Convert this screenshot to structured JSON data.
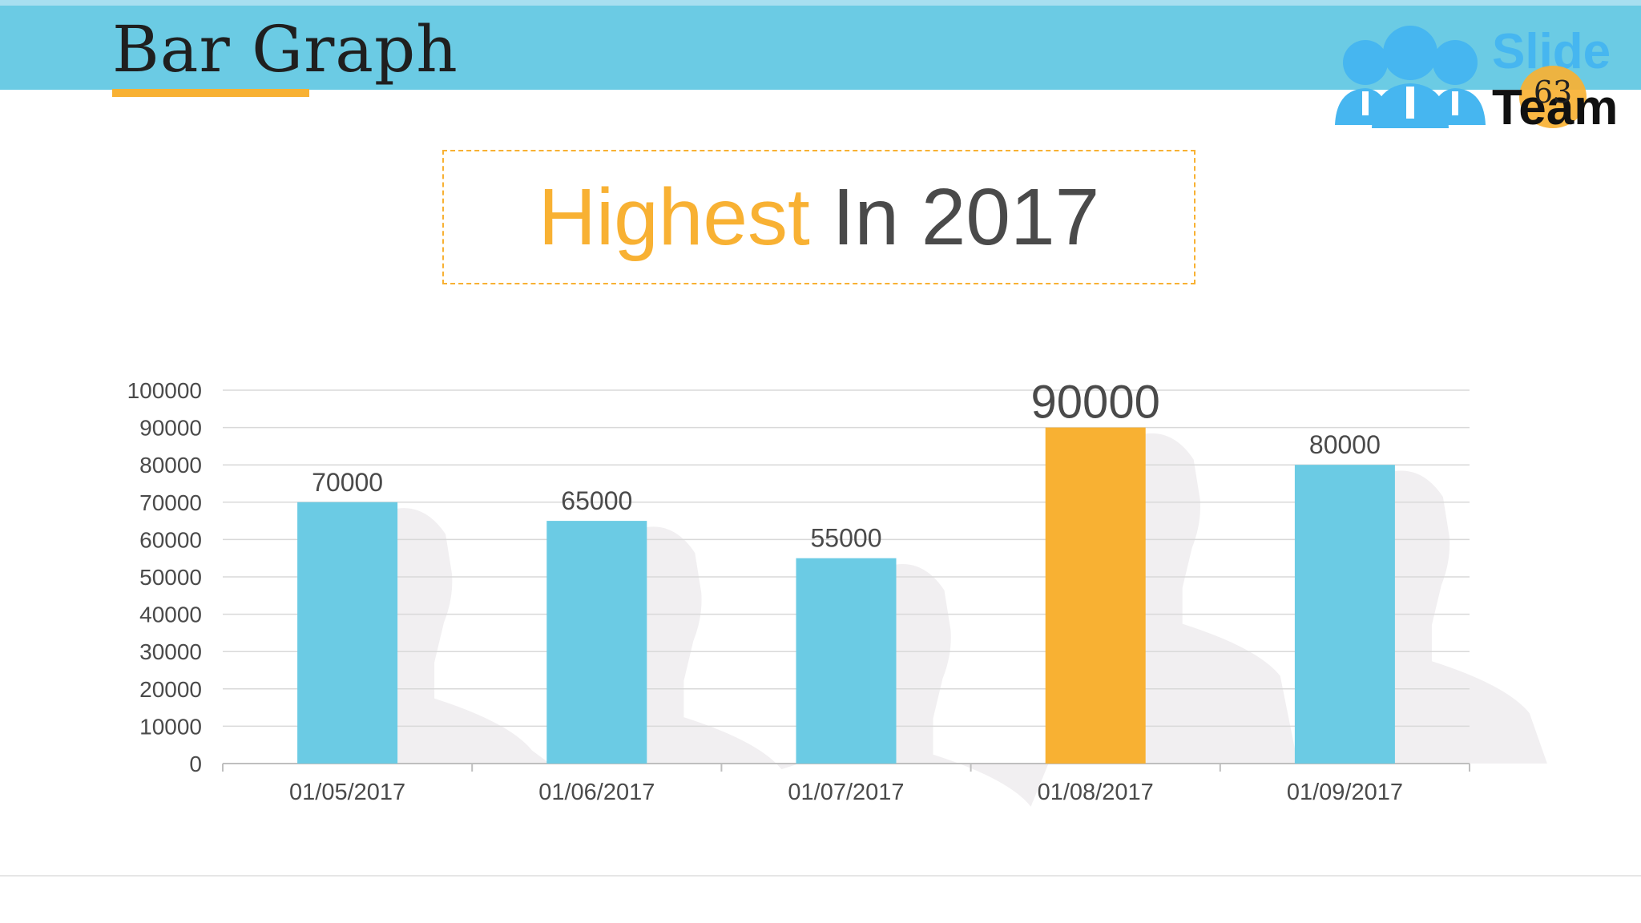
{
  "slide": {
    "title": "Bar Graph",
    "headline_highlight": "Highest",
    "headline_rest": " In 2017",
    "page_number": "63",
    "logo_line1": "Slide",
    "logo_line2": "Team"
  },
  "colors": {
    "header_band": "#6bcbe4",
    "accent": "#f8b133",
    "bar": "#6bcbe4",
    "bar_highlight": "#f8b133",
    "silhouette": "#f1eff1",
    "grid": "#d9d9d9",
    "text": "#4a4a4a"
  },
  "chart_data": {
    "type": "bar",
    "categories": [
      "01/05/2017",
      "01/06/2017",
      "01/07/2017",
      "01/08/2017",
      "01/09/2017"
    ],
    "values": [
      70000,
      65000,
      55000,
      90000,
      80000
    ],
    "data_labels": [
      "70000",
      "65000",
      "55000",
      "90000",
      "80000"
    ],
    "highlight_category": "01/08/2017",
    "ylim": [
      0,
      100000
    ],
    "yticks": [
      0,
      10000,
      20000,
      30000,
      40000,
      50000,
      60000,
      70000,
      80000,
      90000,
      100000
    ],
    "ytick_labels": [
      "0",
      "10000",
      "20000",
      "30000",
      "40000",
      "50000",
      "60000",
      "70000",
      "80000",
      "90000",
      "100000"
    ],
    "grid": true,
    "legend": "none"
  }
}
